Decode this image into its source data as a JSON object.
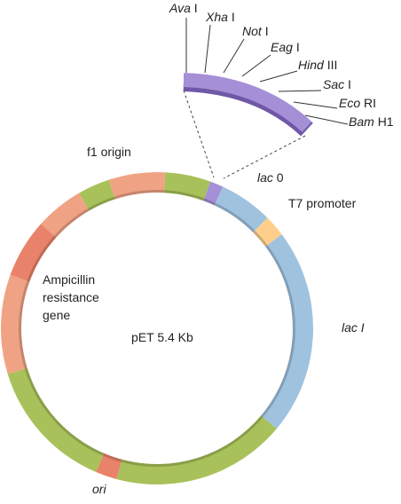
{
  "sites": [
    {
      "italic": "Ava",
      "roman": "I"
    },
    {
      "italic": "Xha",
      "roman": "I"
    },
    {
      "italic": "Not",
      "roman": "I"
    },
    {
      "italic": "Eag",
      "roman": "I"
    },
    {
      "italic": "Hind",
      "roman": "III"
    },
    {
      "italic": "Sac",
      "roman": "I"
    },
    {
      "italic": "Eco",
      "roman": "RI"
    },
    {
      "italic": "Bam",
      "roman": "H1"
    }
  ],
  "regions": {
    "f1_origin": "f1 origin",
    "lac_o": {
      "italic": "lac",
      "roman": "0"
    },
    "t7_promoter": "T7 promoter",
    "lac_i": "lac I",
    "ampicillin": [
      "Ampicillin",
      "resistance",
      "gene"
    ],
    "ori": "ori"
  },
  "center_label": "pET 5.4 Kb"
}
